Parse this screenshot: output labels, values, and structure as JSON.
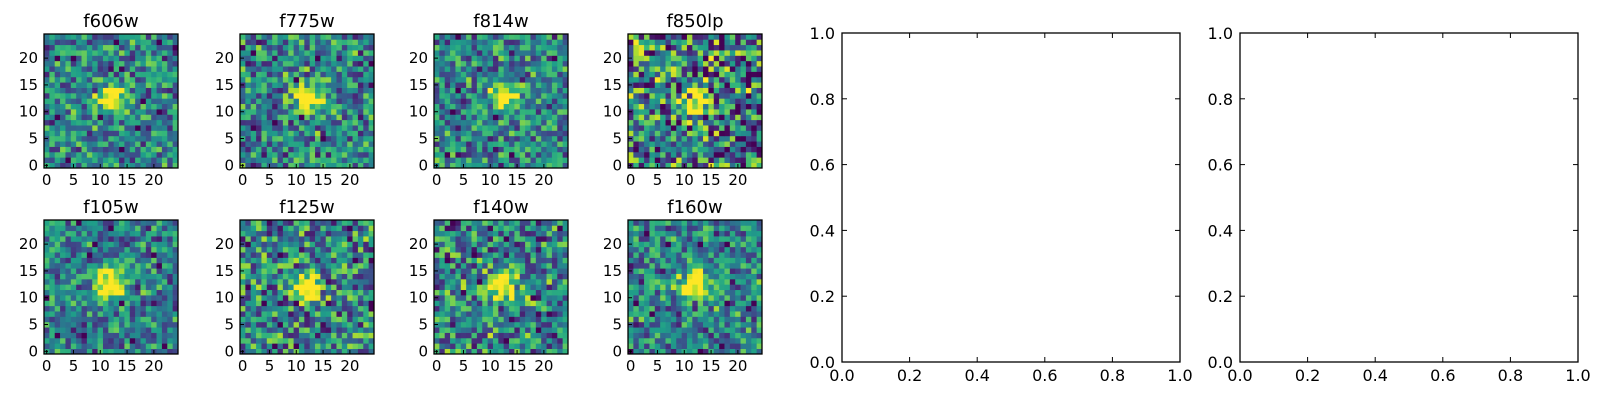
{
  "chart_data": [
    {
      "type": "heatmap",
      "title": "f606w",
      "xticks": [
        0,
        5,
        10,
        15,
        20
      ],
      "yticks": [
        0,
        5,
        10,
        15,
        20
      ],
      "xlim": [
        -0.5,
        24.5
      ],
      "ylim": [
        -0.5,
        24.5
      ],
      "grid": false,
      "colormap": "viridis",
      "noise_level": 0.4,
      "source": {
        "x": 12,
        "y": 12.5,
        "radius": 2.3
      }
    },
    {
      "type": "heatmap",
      "title": "f775w",
      "xticks": [
        0,
        5,
        10,
        15,
        20
      ],
      "yticks": [
        0,
        5,
        10,
        15,
        20
      ],
      "xlim": [
        -0.5,
        24.5
      ],
      "ylim": [
        -0.5,
        24.5
      ],
      "grid": false,
      "colormap": "viridis",
      "noise_level": 0.45,
      "source": {
        "x": 12,
        "y": 12.5,
        "radius": 2.3
      }
    },
    {
      "type": "heatmap",
      "title": "f814w",
      "xticks": [
        0,
        5,
        10,
        15,
        20
      ],
      "yticks": [
        0,
        5,
        10,
        15,
        20
      ],
      "xlim": [
        -0.5,
        24.5
      ],
      "ylim": [
        -0.5,
        24.5
      ],
      "grid": false,
      "colormap": "viridis",
      "noise_level": 0.42,
      "source": {
        "x": 12.5,
        "y": 13,
        "radius": 2.3
      }
    },
    {
      "type": "heatmap",
      "title": "f850lp",
      "xticks": [
        0,
        5,
        10,
        15,
        20
      ],
      "yticks": [
        0,
        5,
        10,
        15,
        20
      ],
      "xlim": [
        -0.5,
        24.5
      ],
      "ylim": [
        -0.5,
        24.5
      ],
      "grid": false,
      "colormap": "viridis",
      "noise_level": 0.62,
      "source": {
        "x": 12,
        "y": 12,
        "radius": 2.2
      }
    },
    {
      "type": "heatmap",
      "title": "f105w",
      "xticks": [
        0,
        5,
        10,
        15,
        20
      ],
      "yticks": [
        0,
        5,
        10,
        15,
        20
      ],
      "xlim": [
        -0.5,
        24.5
      ],
      "ylim": [
        -0.5,
        24.5
      ],
      "grid": false,
      "colormap": "viridis",
      "noise_level": 0.38,
      "source": {
        "x": 12,
        "y": 12.5,
        "radius": 3.0
      }
    },
    {
      "type": "heatmap",
      "title": "f125w",
      "xticks": [
        0,
        5,
        10,
        15,
        20
      ],
      "yticks": [
        0,
        5,
        10,
        15,
        20
      ],
      "xlim": [
        -0.5,
        24.5
      ],
      "ylim": [
        -0.5,
        24.5
      ],
      "grid": false,
      "colormap": "viridis",
      "noise_level": 0.5,
      "source": {
        "x": 12,
        "y": 12,
        "radius": 2.5
      }
    },
    {
      "type": "heatmap",
      "title": "f140w",
      "xticks": [
        0,
        5,
        10,
        15,
        20
      ],
      "yticks": [
        0,
        5,
        10,
        15,
        20
      ],
      "xlim": [
        -0.5,
        24.5
      ],
      "ylim": [
        -0.5,
        24.5
      ],
      "grid": false,
      "colormap": "viridis",
      "noise_level": 0.5,
      "source": {
        "x": 12,
        "y": 12,
        "radius": 2.5
      }
    },
    {
      "type": "heatmap",
      "title": "f160w",
      "xticks": [
        0,
        5,
        10,
        15,
        20
      ],
      "yticks": [
        0,
        5,
        10,
        15,
        20
      ],
      "xlim": [
        -0.5,
        24.5
      ],
      "ylim": [
        -0.5,
        24.5
      ],
      "grid": false,
      "colormap": "viridis",
      "noise_level": 0.42,
      "source": {
        "x": 12,
        "y": 12.5,
        "radius": 2.5
      }
    },
    {
      "type": "scatter",
      "title": "",
      "xlabel": "",
      "ylabel": "",
      "xlim": [
        0.0,
        1.0
      ],
      "ylim": [
        0.0,
        1.0
      ],
      "grid": false,
      "xticks": [
        "0.0",
        "0.2",
        "0.4",
        "0.6",
        "0.8",
        "1.0"
      ],
      "yticks": [
        "0.0",
        "0.2",
        "0.4",
        "0.6",
        "0.8",
        "1.0"
      ],
      "series": []
    },
    {
      "type": "scatter",
      "title": "",
      "xlabel": "",
      "ylabel": "",
      "xlim": [
        0.0,
        1.0
      ],
      "ylim": [
        0.0,
        1.0
      ],
      "grid": false,
      "xticks": [
        "0.0",
        "0.2",
        "0.4",
        "0.6",
        "0.8",
        "1.0"
      ],
      "yticks": [
        "0.0",
        "0.2",
        "0.4",
        "0.6",
        "0.8",
        "1.0"
      ],
      "series": []
    }
  ],
  "colors": {
    "frame": "#000000",
    "background": "#ffffff",
    "colormap_low": "#440154",
    "colormap_high": "#fde725"
  }
}
